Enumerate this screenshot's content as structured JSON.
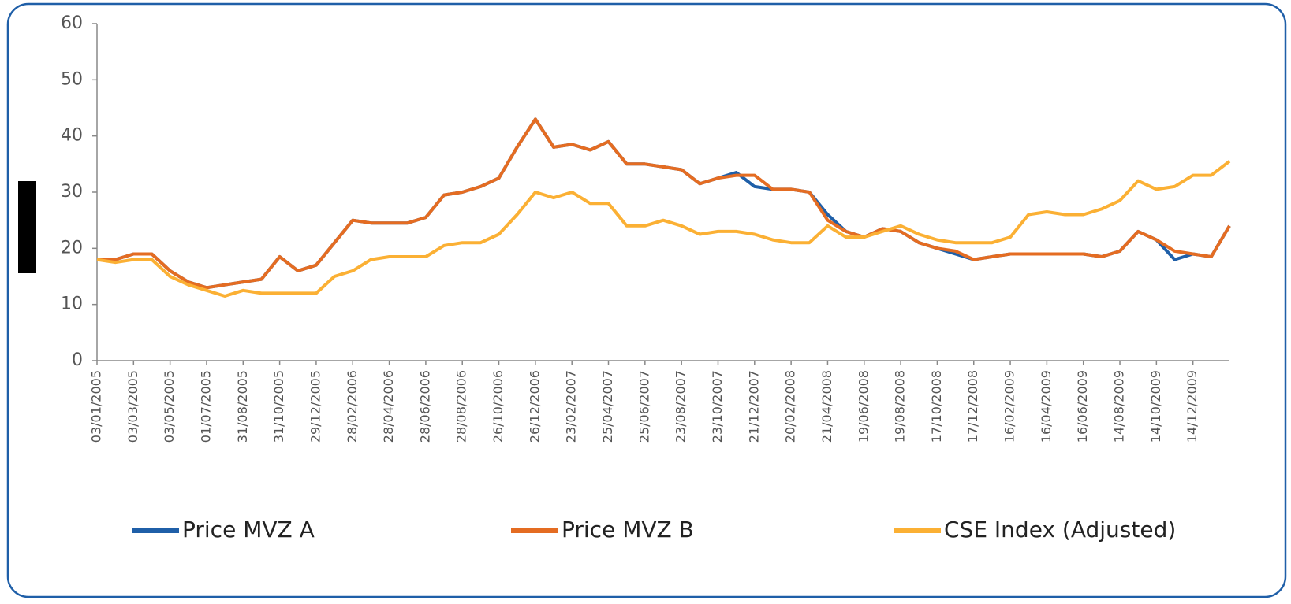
{
  "chart_data": {
    "type": "line",
    "categories": [
      "03/01/2005",
      null,
      "03/03/2005",
      null,
      "03/05/2005",
      null,
      "01/07/2005",
      null,
      "31/08/2005",
      null,
      "31/10/2005",
      null,
      "29/12/2005",
      null,
      "28/02/2006",
      null,
      "28/04/2006",
      null,
      "28/06/2006",
      null,
      "28/08/2006",
      null,
      "26/10/2006",
      null,
      "26/12/2006",
      null,
      "23/02/2007",
      null,
      "25/04/2007",
      null,
      "25/06/2007",
      null,
      "23/08/2007",
      null,
      "23/10/2007",
      null,
      "21/12/2007",
      null,
      "20/02/2008",
      null,
      "21/04/2008",
      null,
      "19/06/2008",
      null,
      "19/08/2008",
      null,
      "17/10/2008",
      null,
      "17/12/2008",
      null,
      "16/02/2009",
      null,
      "16/04/2009",
      null,
      "16/06/2009",
      null,
      "14/08/2009",
      null,
      "14/10/2009",
      null,
      "14/12/2009",
      null,
      null
    ],
    "series": [
      {
        "name": "Price MVZ A",
        "color": "#1f5fa8",
        "values": [
          18,
          18,
          19,
          19,
          16,
          14,
          13,
          13.5,
          14,
          14.5,
          18.5,
          16,
          17,
          21,
          25,
          24.5,
          24.5,
          24.5,
          25.5,
          29.5,
          30,
          31,
          32.5,
          38,
          43,
          38,
          38.5,
          37.5,
          39,
          35,
          35,
          34.5,
          34,
          31.5,
          32.5,
          33.5,
          31,
          30.5,
          30.5,
          30,
          26,
          23,
          22,
          23.5,
          23,
          21,
          20,
          19,
          18,
          18.5,
          19,
          19,
          19,
          19,
          19,
          18.5,
          19.5,
          23,
          21.5,
          18,
          19,
          18.5,
          24
        ]
      },
      {
        "name": "Price MVZ B",
        "color": "#e46c22",
        "values": [
          18,
          18,
          19,
          19,
          16,
          14,
          13,
          13.5,
          14,
          14.5,
          18.5,
          16,
          17,
          21,
          25,
          24.5,
          24.5,
          24.5,
          25.5,
          29.5,
          30,
          31,
          32.5,
          38,
          43,
          38,
          38.5,
          37.5,
          39,
          35,
          35,
          34.5,
          34,
          31.5,
          32.5,
          33,
          33,
          30.5,
          30.5,
          30,
          25,
          23,
          22,
          23.5,
          23,
          21,
          20,
          19.5,
          18,
          18.5,
          19,
          19,
          19,
          19,
          19,
          18.5,
          19.5,
          23,
          21.5,
          19.5,
          19,
          18.5,
          24
        ]
      },
      {
        "name": "CSE Index (Adjusted)",
        "color": "#fbb034",
        "values": [
          18,
          17.5,
          18,
          18,
          15,
          13.5,
          12.5,
          11.5,
          12.5,
          12,
          12,
          12,
          12,
          15,
          16,
          18,
          18.5,
          18.5,
          18.5,
          20.5,
          21,
          21,
          22.5,
          26,
          30,
          29,
          30,
          28,
          28,
          24,
          24,
          25,
          24,
          22.5,
          23,
          23,
          22.5,
          21.5,
          21,
          21,
          24,
          22,
          22,
          23,
          24,
          22.5,
          21.5,
          21,
          21,
          21,
          22,
          26,
          26.5,
          26,
          26,
          27,
          28.5,
          32,
          30.5,
          31,
          33,
          33,
          35.5
        ]
      }
    ],
    "ylim": [
      0,
      60
    ],
    "yticks": [
      0,
      10,
      20,
      30,
      40,
      50,
      60
    ]
  }
}
